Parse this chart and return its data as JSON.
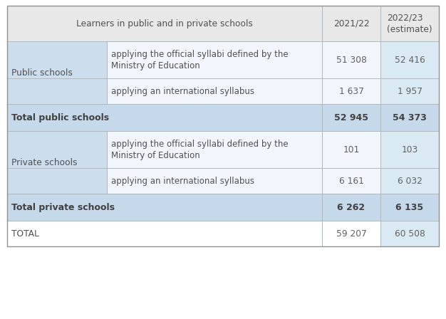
{
  "header": [
    "Learners in public and in private schools",
    "2021/22",
    "2022/23\n(estimate)"
  ],
  "rows": [
    {
      "group": "Public schools",
      "subrows": [
        {
          "description": "applying the official syllabi defined by the\nMinistry of Education",
          "val1": "51 308",
          "val2": "52 416"
        },
        {
          "description": "applying an international syllabus",
          "val1": "1 637",
          "val2": "1 957"
        }
      ],
      "total_label": "Total public schools",
      "total_val1": "52 945",
      "total_val2": "54 373"
    },
    {
      "group": "Private schools",
      "subrows": [
        {
          "description": "applying the official syllabi defined by the\nMinistry of Education",
          "val1": "101",
          "val2": "103"
        },
        {
          "description": "applying an international syllabus",
          "val1": "6 161",
          "val2": "6 032"
        }
      ],
      "total_label": "Total private schools",
      "total_val1": "6 262",
      "total_val2": "6 135"
    }
  ],
  "grand_total_label": "TOTAL",
  "grand_total_val1": "59 207",
  "grand_total_val2": "60 508",
  "color_header": "#e8e8e8",
  "color_group_left": "#ccdded",
  "color_group_desc": "#f0f6fb",
  "color_group_val2": "#daeaf5",
  "color_total": "#c5d9ea",
  "color_white": "#ffffff",
  "color_border": "#b0b8c0",
  "text_color_dark": "#505050",
  "text_color_mid": "#606060",
  "figw": 6.26,
  "figh": 4.48,
  "dpi": 100
}
